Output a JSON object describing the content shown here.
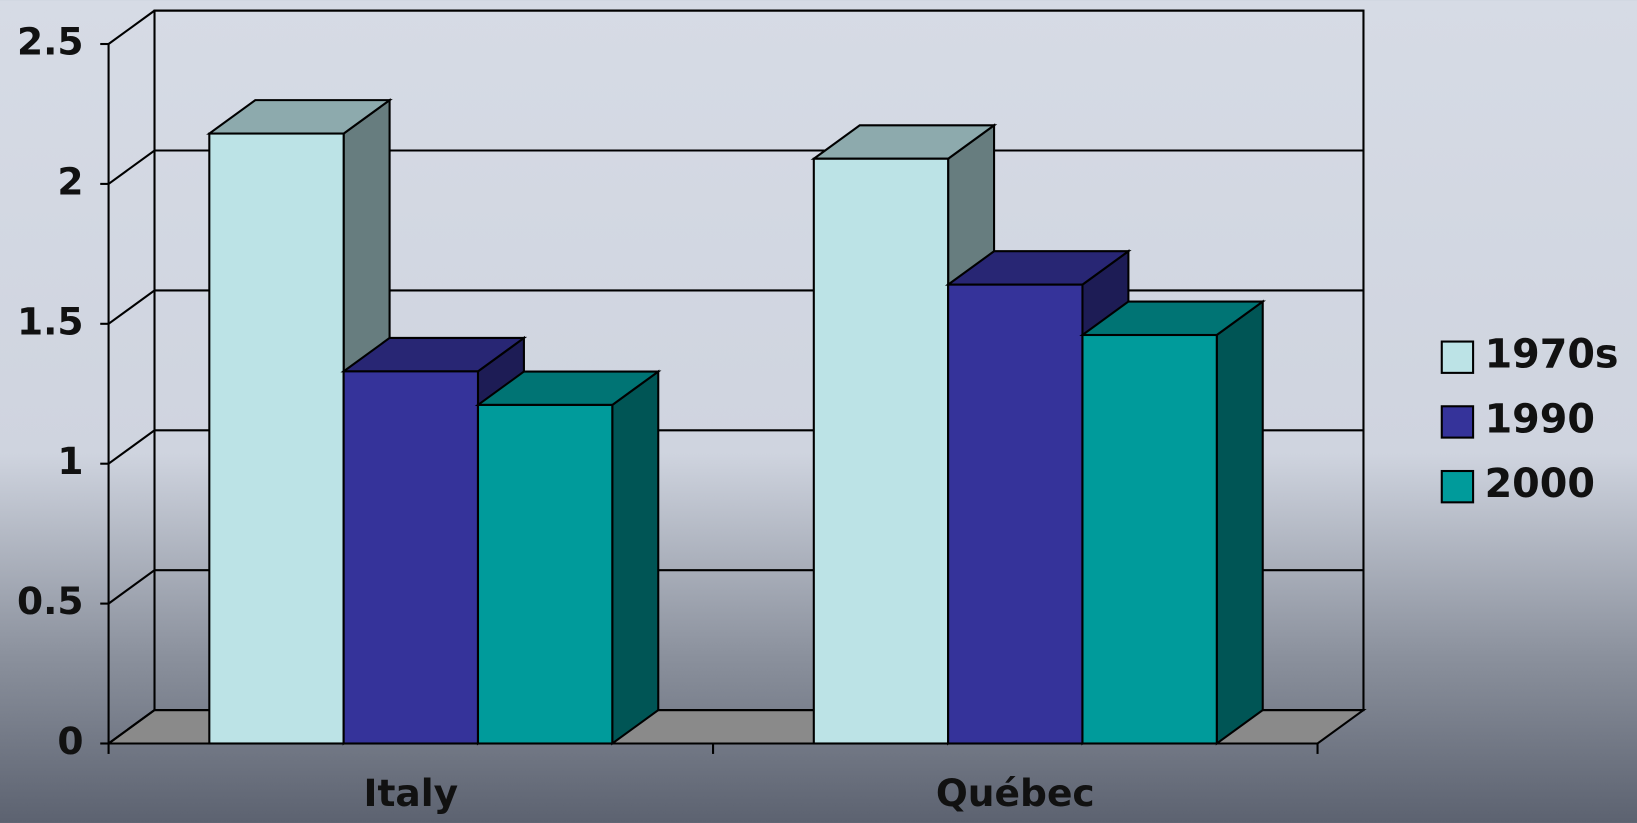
{
  "chart_data": {
    "type": "bar3d",
    "categories": [
      "Italy",
      "Québec"
    ],
    "series": [
      {
        "name": "1970s",
        "color": "#bce3e6",
        "values": [
          2.18,
          2.09
        ]
      },
      {
        "name": "1990",
        "color": "#35339a",
        "values": [
          1.33,
          1.64
        ]
      },
      {
        "name": "2000",
        "color": "#009b9b",
        "values": [
          1.21,
          1.46
        ]
      }
    ],
    "ylim": [
      0,
      2.5
    ],
    "yticks": [
      0,
      0.5,
      1,
      1.5,
      2,
      2.5
    ],
    "grid": true,
    "legend": "right"
  }
}
